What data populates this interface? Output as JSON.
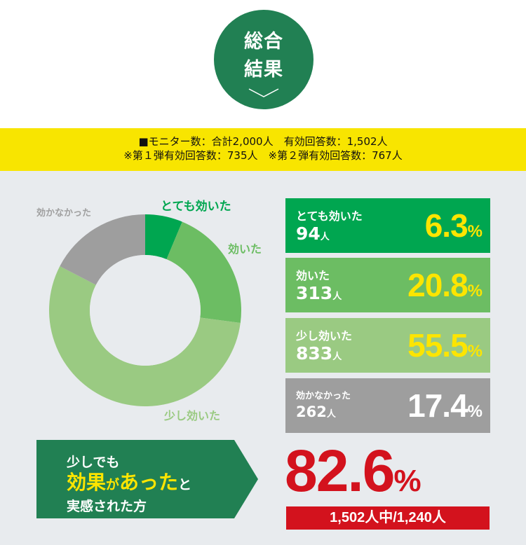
{
  "header": {
    "badge_line1": "総合",
    "badge_line2": "結果",
    "badge_icon": "chevron-down-icon"
  },
  "summary": {
    "line1": "■モニター数：合計2,000人　有効回答数：1,502人",
    "line2": "※第１弾有効回答数：735人　※第２弾有効回答数：767人"
  },
  "chart_data": {
    "type": "pie",
    "title": "総合結果",
    "categories": [
      "とても効いた",
      "効いた",
      "少し効いた",
      "効かなかった"
    ],
    "values": [
      6.3,
      20.8,
      55.5,
      17.4
    ],
    "counts": [
      94,
      313,
      833,
      262
    ],
    "colors": [
      "#00a650",
      "#6cbd63",
      "#9aca82",
      "#9e9e9e"
    ],
    "total_valid": 1502,
    "donut": true
  },
  "labels": {
    "l0": "とても効いた",
    "l1": "効いた",
    "l2": "少し効いた",
    "l3": "効かなかった"
  },
  "cards": [
    {
      "name": "とても効いた",
      "count": "94",
      "unit": "人",
      "pct": "6.3",
      "ps": "%"
    },
    {
      "name": "効いた",
      "count": "313",
      "unit": "人",
      "pct": "20.8",
      "ps": "%"
    },
    {
      "name": "少し効いた",
      "count": "833",
      "unit": "人",
      "pct": "55.5",
      "ps": "%"
    },
    {
      "name": "効かなかった",
      "count": "262",
      "unit": "人",
      "pct": "17.4",
      "ps": "%"
    }
  ],
  "conclusion": {
    "line1": "少しでも",
    "line2a": "効果",
    "line2b": "が",
    "line2c": "あった",
    "line2d": "と",
    "line3": "実感された方",
    "pct": "82.6",
    "ps": "%",
    "detail": "1,502人中/1,240人"
  }
}
